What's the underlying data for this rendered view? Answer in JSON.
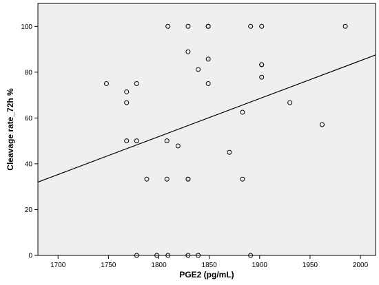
{
  "chart_data": {
    "type": "scatter",
    "xlabel": "PGE2 (pg/mL)",
    "ylabel": "Cleavage rate_72h %",
    "xlim": [
      1680,
      2015
    ],
    "ylim": [
      0,
      110
    ],
    "x_ticks": [
      1700,
      1750,
      1800,
      1850,
      1900,
      1950,
      2000
    ],
    "y_ticks": [
      0,
      20,
      40,
      60,
      80,
      100
    ],
    "grid": false,
    "legend": "none",
    "colors": {
      "plot_background": "#efefef",
      "marker_stroke": "#000000",
      "line": "#000000"
    },
    "series": [
      {
        "points": [
          [
            1748,
            75
          ],
          [
            1768,
            71.4
          ],
          [
            1768,
            66.7
          ],
          [
            1768,
            50
          ],
          [
            1778,
            75
          ],
          [
            1778,
            50
          ],
          [
            1778,
            0
          ],
          [
            1788,
            33.3
          ],
          [
            1798,
            0
          ],
          [
            1808,
            50
          ],
          [
            1808,
            33.3
          ],
          [
            1809,
            100
          ],
          [
            1809,
            0
          ],
          [
            1819,
            47.8
          ],
          [
            1829,
            100
          ],
          [
            1829,
            88.9
          ],
          [
            1829,
            33.3
          ],
          [
            1829,
            33.3
          ],
          [
            1829,
            0
          ],
          [
            1839,
            81.2
          ],
          [
            1839,
            0
          ],
          [
            1849,
            100
          ],
          [
            1849,
            100
          ],
          [
            1849,
            85.7
          ],
          [
            1849,
            75
          ],
          [
            1870,
            45
          ],
          [
            1883,
            62.5
          ],
          [
            1883,
            33.3
          ],
          [
            1891,
            100
          ],
          [
            1891,
            0
          ],
          [
            1902,
            100
          ],
          [
            1902,
            83.3
          ],
          [
            1902,
            83.3
          ],
          [
            1902,
            77.8
          ],
          [
            1930,
            66.7
          ],
          [
            1962,
            57.1
          ],
          [
            1985,
            100
          ]
        ]
      }
    ],
    "fit_line": {
      "x": [
        1680,
        2015
      ],
      "y": [
        32,
        87.5
      ]
    }
  }
}
